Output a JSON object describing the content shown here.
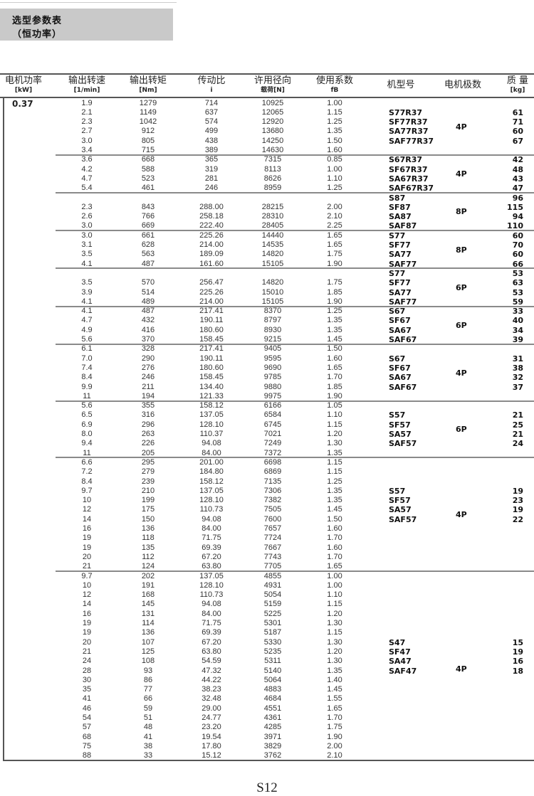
{
  "title": {
    "line1": "选型参数表",
    "line2": "（恒功率）"
  },
  "headers": [
    {
      "l1": "电机功率",
      "l2": "[kW]"
    },
    {
      "l1": "输出转速",
      "l2": "[1/min]"
    },
    {
      "l1": "输出转矩",
      "l2": "[Nm]"
    },
    {
      "l1": "传动比",
      "l2": "i"
    },
    {
      "l1": "许用径向",
      "l2": "载荷[N]"
    },
    {
      "l1": "使用系数",
      "l2": "fB"
    },
    {
      "l1": "机型号",
      "l2": ""
    },
    {
      "l1": "电机极数",
      "l2": ""
    },
    {
      "l1": "质 量",
      "l2": "[kg]"
    }
  ],
  "power": "0.37",
  "groups": [
    {
      "rows": [
        [
          "1.9",
          "1279",
          "714",
          "10925",
          "1.00"
        ],
        [
          "2.1",
          "1149",
          "637",
          "12065",
          "1.15"
        ],
        [
          "2.3",
          "1042",
          "574",
          "12920",
          "1.25"
        ],
        [
          "2.7",
          "912",
          "499",
          "13680",
          "1.35"
        ],
        [
          "3.0",
          "805",
          "438",
          "14250",
          "1.50"
        ],
        [
          "3.4",
          "715",
          "389",
          "14630",
          "1.60"
        ]
      ],
      "models": [
        "S77R37",
        "SF77R37",
        "SA77R37",
        "SAF77R37"
      ],
      "weights": [
        "61",
        "71",
        "60",
        "67"
      ],
      "pole": "4P"
    },
    {
      "rows": [
        [
          "3.6",
          "668",
          "365",
          "7315",
          "0.85"
        ],
        [
          "4.2",
          "588",
          "319",
          "8113",
          "1.00"
        ],
        [
          "4.7",
          "523",
          "281",
          "8626",
          "1.10"
        ],
        [
          "5.4",
          "461",
          "246",
          "8959",
          "1.25"
        ]
      ],
      "models": [
        "S67R37",
        "SF67R37",
        "SA67R37",
        "SAF67R37"
      ],
      "weights": [
        "42",
        "48",
        "43",
        "47"
      ],
      "pole": "4P"
    },
    {
      "rows": [
        null,
        [
          "2.3",
          "843",
          "288.00",
          "28215",
          "2.00"
        ],
        [
          "2.6",
          "766",
          "258.18",
          "28310",
          "2.10"
        ],
        [
          "3.0",
          "669",
          "222.40",
          "28405",
          "2.25"
        ]
      ],
      "models": [
        "S87",
        "SF87",
        "SA87",
        "SAF87"
      ],
      "weights": [
        "96",
        "115",
        "94",
        "110"
      ],
      "pole": "8P"
    },
    {
      "rows": [
        [
          "3.0",
          "661",
          "225.26",
          "14440",
          "1.65"
        ],
        [
          "3.1",
          "628",
          "214.00",
          "14535",
          "1.65"
        ],
        [
          "3.5",
          "563",
          "189.09",
          "14820",
          "1.75"
        ],
        [
          "4.1",
          "487",
          "161.60",
          "15105",
          "1.90"
        ]
      ],
      "models": [
        "S77",
        "SF77",
        "SA77",
        "SAF77"
      ],
      "weights": [
        "60",
        "70",
        "60",
        "66"
      ],
      "pole": "8P"
    },
    {
      "rows": [
        null,
        [
          "3.5",
          "570",
          "256.47",
          "14820",
          "1.75"
        ],
        [
          "3.9",
          "514",
          "225.26",
          "15010",
          "1.85"
        ],
        [
          "4.1",
          "489",
          "214.00",
          "15105",
          "1.90"
        ]
      ],
      "models": [
        "S77",
        "SF77",
        "SA77",
        "SAF77"
      ],
      "weights": [
        "53",
        "63",
        "53",
        "59"
      ],
      "pole": "6P"
    },
    {
      "rows": [
        [
          "4.1",
          "487",
          "217.41",
          "8370",
          "1.25"
        ],
        [
          "4.7",
          "432",
          "190.11",
          "8797",
          "1.35"
        ],
        [
          "4.9",
          "416",
          "180.60",
          "8930",
          "1.35"
        ],
        [
          "5.6",
          "370",
          "158.45",
          "9215",
          "1.45"
        ]
      ],
      "models": [
        "S67",
        "SF67",
        "SA67",
        "SAF67"
      ],
      "weights": [
        "33",
        "40",
        "34",
        "39"
      ],
      "pole": "6P"
    },
    {
      "rows": [
        [
          "6.1",
          "328",
          "217.41",
          "9405",
          "1.50"
        ],
        [
          "7.0",
          "290",
          "190.11",
          "9595",
          "1.60"
        ],
        [
          "7.4",
          "276",
          "180.60",
          "9690",
          "1.65"
        ],
        [
          "8.4",
          "246",
          "158.45",
          "9785",
          "1.70"
        ],
        [
          "9.9",
          "211",
          "134.40",
          "9880",
          "1.85"
        ],
        [
          "11",
          "194",
          "121.33",
          "9975",
          "1.90"
        ]
      ],
      "models": [
        "S67",
        "SF67",
        "SA67",
        "SAF67"
      ],
      "weights": [
        "31",
        "38",
        "32",
        "37"
      ],
      "pole": "4P"
    },
    {
      "rows": [
        [
          "5.6",
          "355",
          "158.12",
          "6166",
          "1.05"
        ],
        [
          "6.5",
          "316",
          "137.05",
          "6584",
          "1.10"
        ],
        [
          "6.9",
          "296",
          "128.10",
          "6745",
          "1.15"
        ],
        [
          "8.0",
          "263",
          "110.37",
          "7021",
          "1.20"
        ],
        [
          "9.4",
          "226",
          "94.08",
          "7249",
          "1.30"
        ],
        [
          "11",
          "205",
          "84.00",
          "7372",
          "1.35"
        ]
      ],
      "models": [
        "S57",
        "SF57",
        "SA57",
        "SAF57"
      ],
      "weights": [
        "21",
        "25",
        "21",
        "24"
      ],
      "pole": "6P"
    },
    {
      "rows": [
        [
          "6.6",
          "295",
          "201.00",
          "6698",
          "1.15"
        ],
        [
          "7.2",
          "279",
          "184.80",
          "6869",
          "1.15"
        ],
        [
          "8.4",
          "239",
          "158.12",
          "7135",
          "1.25"
        ],
        [
          "9.7",
          "210",
          "137.05",
          "7306",
          "1.35"
        ],
        [
          "10",
          "199",
          "128.10",
          "7382",
          "1.35"
        ],
        [
          "12",
          "175",
          "110.73",
          "7505",
          "1.45"
        ],
        [
          "14",
          "150",
          "94.08",
          "7600",
          "1.50"
        ],
        [
          "16",
          "136",
          "84.00",
          "7657",
          "1.60"
        ],
        [
          "19",
          "118",
          "71.75",
          "7724",
          "1.70"
        ],
        [
          "19",
          "135",
          "69.39",
          "7667",
          "1.60"
        ],
        [
          "20",
          "112",
          "67.20",
          "7743",
          "1.70"
        ],
        [
          "21",
          "124",
          "63.80",
          "7705",
          "1.65"
        ]
      ],
      "models": [
        "S57",
        "SF57",
        "SA57",
        "SAF57"
      ],
      "weights": [
        "19",
        "23",
        "19",
        "22"
      ],
      "pole": "4P"
    },
    {
      "rows": [
        [
          "9.7",
          "202",
          "137.05",
          "4855",
          "1.00"
        ],
        [
          "10",
          "191",
          "128.10",
          "4931",
          "1.00"
        ],
        [
          "12",
          "168",
          "110.73",
          "5054",
          "1.10"
        ],
        [
          "14",
          "145",
          "94.08",
          "5159",
          "1.15"
        ],
        [
          "16",
          "131",
          "84.00",
          "5225",
          "1.20"
        ],
        [
          "19",
          "114",
          "71.75",
          "5301",
          "1.30"
        ],
        [
          "19",
          "136",
          "69.39",
          "5187",
          "1.15"
        ],
        [
          "20",
          "107",
          "67.20",
          "5330",
          "1.30"
        ],
        [
          "21",
          "125",
          "63.80",
          "5235",
          "1.20"
        ],
        [
          "24",
          "108",
          "54.59",
          "5311",
          "1.30"
        ],
        [
          "28",
          "93",
          "47.32",
          "5140",
          "1.35"
        ],
        [
          "30",
          "86",
          "44.22",
          "5064",
          "1.40"
        ],
        [
          "35",
          "77",
          "38.23",
          "4883",
          "1.45"
        ],
        [
          "41",
          "66",
          "32.48",
          "4684",
          "1.55"
        ],
        [
          "46",
          "59",
          "29.00",
          "4551",
          "1.65"
        ],
        [
          "54",
          "51",
          "24.77",
          "4361",
          "1.70"
        ],
        [
          "57",
          "48",
          "23.20",
          "4285",
          "1.75"
        ],
        [
          "68",
          "41",
          "19.54",
          "3971",
          "1.90"
        ],
        [
          "75",
          "38",
          "17.80",
          "3829",
          "2.00"
        ],
        [
          "88",
          "33",
          "15.12",
          "3762",
          "2.10"
        ]
      ],
      "models": [
        "S47",
        "SF47",
        "SA47",
        "SAF47"
      ],
      "weights": [
        "15",
        "19",
        "16",
        "18"
      ],
      "pole": "4P"
    }
  ],
  "page_number": "S12"
}
